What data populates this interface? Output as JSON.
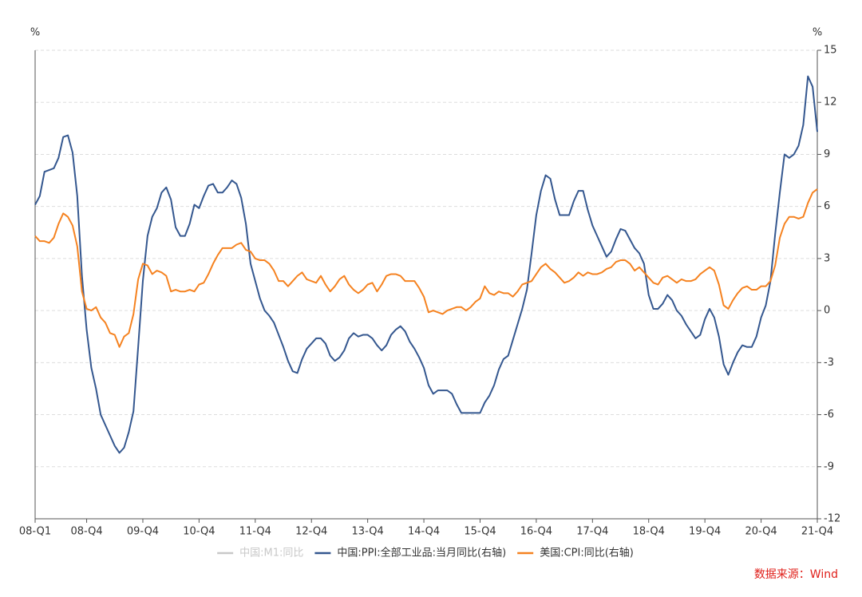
{
  "chart_data": {
    "type": "line",
    "y_unit_left": "%",
    "y_unit_right": "%",
    "categories": [
      "08-Q1",
      null,
      null,
      null,
      null,
      null,
      null,
      null,
      null,
      null,
      null,
      "08-Q4",
      null,
      null,
      null,
      null,
      null,
      null,
      null,
      null,
      null,
      null,
      null,
      "09-Q4",
      null,
      null,
      null,
      null,
      null,
      null,
      null,
      null,
      null,
      null,
      null,
      "10-Q4",
      null,
      null,
      null,
      null,
      null,
      null,
      null,
      null,
      null,
      null,
      null,
      "11-Q4",
      null,
      null,
      null,
      null,
      null,
      null,
      null,
      null,
      null,
      null,
      null,
      "12-Q4",
      null,
      null,
      null,
      null,
      null,
      null,
      null,
      null,
      null,
      null,
      null,
      "13-Q4",
      null,
      null,
      null,
      null,
      null,
      null,
      null,
      null,
      null,
      null,
      null,
      "14-Q4",
      null,
      null,
      null,
      null,
      null,
      null,
      null,
      null,
      null,
      null,
      null,
      "15-Q4",
      null,
      null,
      null,
      null,
      null,
      null,
      null,
      null,
      null,
      null,
      null,
      "16-Q4",
      null,
      null,
      null,
      null,
      null,
      null,
      null,
      null,
      null,
      null,
      null,
      "17-Q4",
      null,
      null,
      null,
      null,
      null,
      null,
      null,
      null,
      null,
      null,
      null,
      "18-Q4",
      null,
      null,
      null,
      null,
      null,
      null,
      null,
      null,
      null,
      null,
      null,
      "19-Q4",
      null,
      null,
      null,
      null,
      null,
      null,
      null,
      null,
      null,
      null,
      null,
      "20-Q4",
      null,
      null,
      null,
      null,
      null,
      null,
      null,
      null,
      null,
      null,
      null,
      "21-Q4"
    ],
    "series": [
      {
        "name": "中国:M1:同比",
        "color": "#c8c8c8",
        "values": [
          null,
          null,
          null,
          null,
          null,
          null,
          null,
          null,
          null,
          null,
          null,
          null,
          null,
          null,
          null,
          null,
          null,
          null,
          null,
          null,
          null,
          null,
          null,
          null,
          null,
          null,
          null,
          null,
          null,
          null,
          null,
          null,
          null,
          null,
          null,
          null,
          null,
          null,
          null,
          null,
          null,
          null,
          null,
          null,
          null,
          null,
          null,
          null,
          null,
          null,
          null,
          null,
          null,
          null,
          null,
          null,
          null,
          null,
          null,
          null,
          null,
          null,
          null,
          null,
          null,
          null,
          null,
          null,
          null,
          null,
          null,
          null,
          null,
          null,
          null,
          null,
          null,
          null,
          null,
          null,
          null,
          null,
          null,
          null,
          null,
          null,
          null,
          null,
          null,
          null,
          null,
          null,
          null,
          null,
          null,
          null,
          null,
          null,
          null,
          null,
          null,
          null,
          null,
          null,
          null,
          null,
          null,
          null,
          null,
          null,
          null,
          null,
          null,
          null,
          null,
          null,
          null,
          null,
          null,
          null,
          null,
          null,
          null,
          null,
          null,
          null,
          null,
          null,
          null,
          null,
          null,
          null,
          null,
          null,
          null,
          null,
          null,
          null,
          null,
          null,
          null,
          null,
          null,
          null,
          null,
          null,
          null,
          null,
          null,
          null,
          null,
          null,
          null,
          null,
          null,
          null,
          null,
          null,
          null,
          null,
          null,
          null,
          null,
          null,
          null,
          null,
          null,
          null
        ]
      },
      {
        "name": "中国:PPI:全部工业品:当月同比(右轴)",
        "color": "#34578f",
        "axis": "y2",
        "values": [
          6.1,
          6.6,
          8.0,
          8.1,
          8.2,
          8.8,
          10.0,
          10.1,
          9.1,
          6.6,
          2.0,
          -1.1,
          -3.3,
          -4.5,
          -6.0,
          -6.6,
          -7.2,
          -7.8,
          -8.2,
          -7.9,
          -7.0,
          -5.8,
          -2.1,
          1.7,
          4.3,
          5.4,
          5.9,
          6.8,
          7.1,
          6.4,
          4.8,
          4.3,
          4.3,
          5.0,
          6.1,
          5.9,
          6.6,
          7.2,
          7.3,
          6.8,
          6.8,
          7.1,
          7.5,
          7.3,
          6.5,
          5.0,
          2.7,
          1.7,
          0.7,
          0.0,
          -0.3,
          -0.7,
          -1.4,
          -2.1,
          -2.9,
          -3.5,
          -3.6,
          -2.8,
          -2.2,
          -1.9,
          -1.6,
          -1.6,
          -1.9,
          -2.6,
          -2.9,
          -2.7,
          -2.3,
          -1.6,
          -1.3,
          -1.5,
          -1.4,
          -1.4,
          -1.6,
          -2.0,
          -2.3,
          -2.0,
          -1.4,
          -1.1,
          -0.9,
          -1.2,
          -1.8,
          -2.2,
          -2.7,
          -3.3,
          -4.3,
          -4.8,
          -4.6,
          -4.6,
          -4.6,
          -4.8,
          -5.4,
          -5.9,
          -5.9,
          -5.9,
          -5.9,
          -5.9,
          -5.3,
          -4.9,
          -4.3,
          -3.4,
          -2.8,
          -2.6,
          -1.7,
          -0.8,
          0.1,
          1.2,
          3.3,
          5.5,
          6.9,
          7.8,
          7.6,
          6.4,
          5.5,
          5.5,
          5.5,
          6.3,
          6.9,
          6.9,
          5.8,
          4.9,
          4.3,
          3.7,
          3.1,
          3.4,
          4.1,
          4.7,
          4.6,
          4.1,
          3.6,
          3.3,
          2.7,
          0.9,
          0.1,
          0.1,
          0.4,
          0.9,
          0.6,
          0.0,
          -0.3,
          -0.8,
          -1.2,
          -1.6,
          -1.4,
          -0.5,
          0.1,
          -0.4,
          -1.5,
          -3.1,
          -3.7,
          -3.0,
          -2.4,
          -2.0,
          -2.1,
          -2.1,
          -1.5,
          -0.4,
          0.3,
          1.7,
          4.4,
          6.8,
          9.0,
          8.8,
          9.0,
          9.5,
          10.7,
          13.5,
          12.9,
          10.3
        ]
      },
      {
        "name": "美国:CPI:同比(右轴)",
        "color": "#f58220",
        "axis": "y2",
        "values": [
          4.3,
          4.0,
          4.0,
          3.9,
          4.2,
          5.0,
          5.6,
          5.4,
          4.9,
          3.7,
          1.1,
          0.1,
          0.0,
          0.2,
          -0.4,
          -0.7,
          -1.3,
          -1.4,
          -2.1,
          -1.5,
          -1.3,
          -0.2,
          1.8,
          2.7,
          2.6,
          2.1,
          2.3,
          2.2,
          2.0,
          1.1,
          1.2,
          1.1,
          1.1,
          1.2,
          1.1,
          1.5,
          1.6,
          2.1,
          2.7,
          3.2,
          3.6,
          3.6,
          3.6,
          3.8,
          3.9,
          3.5,
          3.4,
          3.0,
          2.9,
          2.9,
          2.7,
          2.3,
          1.7,
          1.7,
          1.4,
          1.7,
          2.0,
          2.2,
          1.8,
          1.7,
          1.6,
          2.0,
          1.5,
          1.1,
          1.4,
          1.8,
          2.0,
          1.5,
          1.2,
          1.0,
          1.2,
          1.5,
          1.6,
          1.1,
          1.5,
          2.0,
          2.1,
          2.1,
          2.0,
          1.7,
          1.7,
          1.7,
          1.3,
          0.8,
          -0.1,
          0.0,
          -0.1,
          -0.2,
          0.0,
          0.1,
          0.2,
          0.2,
          0.0,
          0.2,
          0.5,
          0.7,
          1.4,
          1.0,
          0.9,
          1.1,
          1.0,
          1.0,
          0.8,
          1.1,
          1.5,
          1.6,
          1.7,
          2.1,
          2.5,
          2.7,
          2.4,
          2.2,
          1.9,
          1.6,
          1.7,
          1.9,
          2.2,
          2.0,
          2.2,
          2.1,
          2.1,
          2.2,
          2.4,
          2.5,
          2.8,
          2.9,
          2.9,
          2.7,
          2.3,
          2.5,
          2.2,
          1.9,
          1.6,
          1.5,
          1.9,
          2.0,
          1.8,
          1.6,
          1.8,
          1.7,
          1.7,
          1.8,
          2.1,
          2.3,
          2.5,
          2.3,
          1.5,
          0.3,
          0.1,
          0.6,
          1.0,
          1.3,
          1.4,
          1.2,
          1.2,
          1.4,
          1.4,
          1.7,
          2.6,
          4.2,
          5.0,
          5.4,
          5.4,
          5.3,
          5.4,
          6.2,
          6.8,
          7.0
        ]
      }
    ],
    "y2lim": [
      -12,
      15
    ],
    "y2ticks": [
      -12,
      -9,
      -6,
      -3,
      0,
      3,
      6,
      9,
      12,
      15
    ],
    "grid": true,
    "legend": "bottom",
    "source": "数据来源：Wind",
    "source_color": "#e0201b"
  }
}
